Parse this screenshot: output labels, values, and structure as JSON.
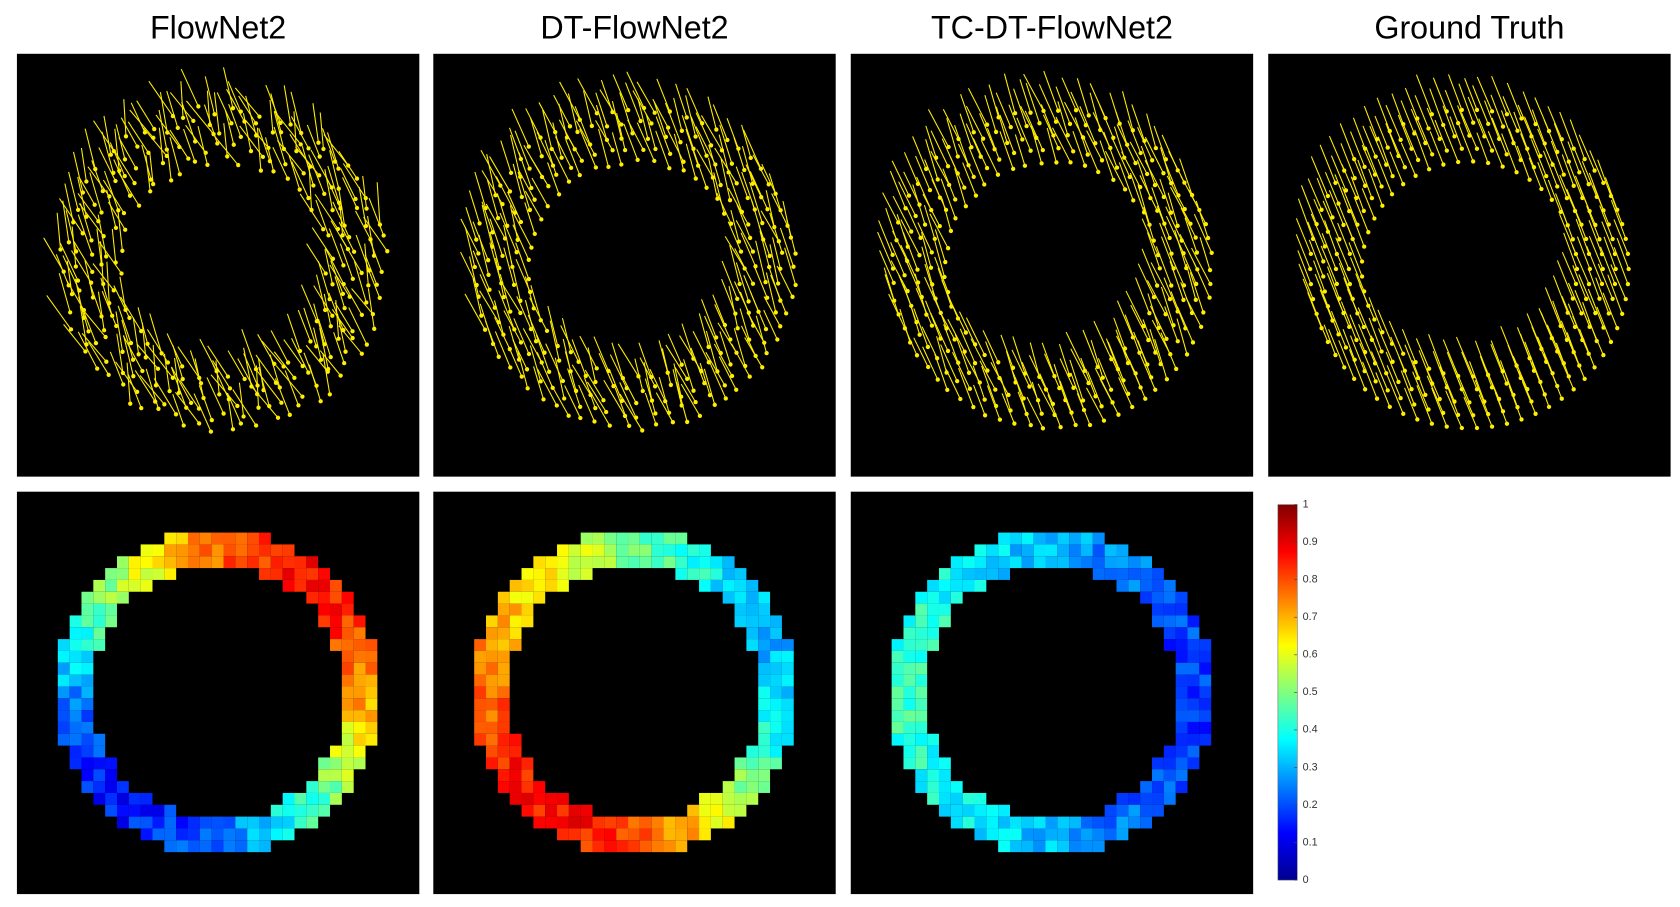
{
  "titles": [
    "FlowNet2",
    "DT-FlowNet2",
    "TC-DT-FlowNet2",
    "Ground Truth"
  ],
  "colorbar": {
    "ylim": [
      0,
      1
    ],
    "yticks": [
      0,
      0.1,
      0.2,
      0.3,
      0.4,
      0.5,
      0.6,
      0.7,
      0.8,
      0.9,
      1
    ]
  }
}
